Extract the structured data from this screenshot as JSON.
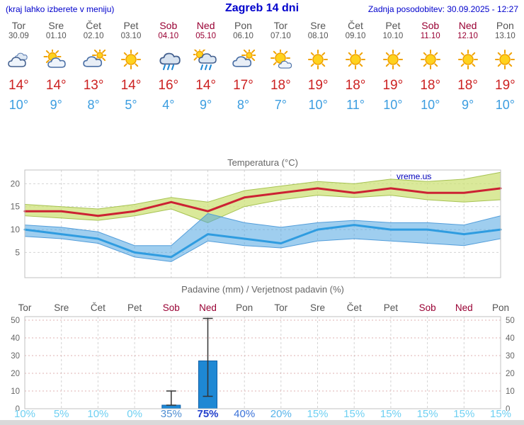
{
  "header": {
    "left_note": "(kraj lahko izberete v meniju)",
    "title": "Zagreb 14 dni",
    "updated": "Zadnja posodobitev: 30.09.2025 - 12:27"
  },
  "colors": {
    "header_blue": "#0000cc",
    "day_gray": "#555555",
    "weekend_red": "#990033",
    "tmax_red": "#cc2222",
    "tmin_blue": "#3b9de0",
    "bar_blue": "#1e88d4",
    "grid_gray": "#d4d4d4",
    "grid_pink": "#dfb0b0",
    "axis_text": "#666666",
    "watermark_blue": "#0000bb",
    "footer_gray": "#d9d9d9"
  },
  "forecast": {
    "days": [
      {
        "name": "Tor",
        "date": "30.09",
        "weekend": false,
        "icon": "cloudy",
        "tmax": "14°",
        "tmin": "10°",
        "prob": "10%",
        "prob_color": "#6fd0f2",
        "prob_bold": false
      },
      {
        "name": "Sre",
        "date": "01.10",
        "weekend": false,
        "icon": "partly-cloudy",
        "tmax": "14°",
        "tmin": "9°",
        "prob": "5%",
        "prob_color": "#6fd0f2",
        "prob_bold": false
      },
      {
        "name": "Čet",
        "date": "02.10",
        "weekend": false,
        "icon": "mostly-cloudy",
        "tmax": "13°",
        "tmin": "8°",
        "prob": "10%",
        "prob_color": "#6fd0f2",
        "prob_bold": false
      },
      {
        "name": "Pet",
        "date": "03.10",
        "weekend": false,
        "icon": "sunny",
        "tmax": "14°",
        "tmin": "5°",
        "prob": "0%",
        "prob_color": "#6fd0f2",
        "prob_bold": false
      },
      {
        "name": "Sob",
        "date": "04.10",
        "weekend": true,
        "icon": "rain",
        "tmax": "16°",
        "tmin": "4°",
        "prob": "35%",
        "prob_color": "#4f8ed2",
        "prob_bold": false
      },
      {
        "name": "Ned",
        "date": "05.10",
        "weekend": true,
        "icon": "rain-sun",
        "tmax": "14°",
        "tmin": "9°",
        "prob": "75%",
        "prob_color": "#2340cc",
        "prob_bold": true
      },
      {
        "name": "Pon",
        "date": "06.10",
        "weekend": false,
        "icon": "mostly-cloudy",
        "tmax": "17°",
        "tmin": "8°",
        "prob": "40%",
        "prob_color": "#3a72d8",
        "prob_bold": false
      },
      {
        "name": "Tor",
        "date": "07.10",
        "weekend": false,
        "icon": "mostly-sunny",
        "tmax": "18°",
        "tmin": "7°",
        "prob": "20%",
        "prob_color": "#58b4ea",
        "prob_bold": false
      },
      {
        "name": "Sre",
        "date": "08.10",
        "weekend": false,
        "icon": "sunny",
        "tmax": "19°",
        "tmin": "10°",
        "prob": "15%",
        "prob_color": "#6fd0f2",
        "prob_bold": false
      },
      {
        "name": "Čet",
        "date": "09.10",
        "weekend": false,
        "icon": "sunny",
        "tmax": "18°",
        "tmin": "11°",
        "prob": "15%",
        "prob_color": "#6fd0f2",
        "prob_bold": false
      },
      {
        "name": "Pet",
        "date": "10.10",
        "weekend": false,
        "icon": "sunny",
        "tmax": "19°",
        "tmin": "10°",
        "prob": "15%",
        "prob_color": "#6fd0f2",
        "prob_bold": false
      },
      {
        "name": "Sob",
        "date": "11.10",
        "weekend": true,
        "icon": "sunny",
        "tmax": "18°",
        "tmin": "10°",
        "prob": "15%",
        "prob_color": "#6fd0f2",
        "prob_bold": false
      },
      {
        "name": "Ned",
        "date": "12.10",
        "weekend": true,
        "icon": "sunny",
        "tmax": "18°",
        "tmin": "9°",
        "prob": "15%",
        "prob_color": "#6fd0f2",
        "prob_bold": false
      },
      {
        "name": "Pon",
        "date": "13.10",
        "weekend": false,
        "icon": "sunny",
        "tmax": "19°",
        "tmin": "10°",
        "prob": "15%",
        "prob_color": "#6fd0f2",
        "prob_bold": false
      }
    ]
  },
  "chart_data": [
    {
      "type": "line",
      "title": "Temperatura (°C)",
      "watermark": "vreme.us",
      "ylim": [
        -0.5,
        23
      ],
      "yticks": [
        5,
        10,
        15,
        20
      ],
      "x_count": 14,
      "series": [
        {
          "name": "max-temperature",
          "color": "#cc2233",
          "width": 3,
          "values": [
            14,
            14,
            13,
            14,
            16,
            14,
            17,
            18,
            19,
            18,
            19,
            18,
            18,
            19
          ]
        },
        {
          "name": "min-temperature",
          "color": "#2f9ce0",
          "width": 3,
          "values": [
            10,
            9,
            8,
            5,
            4,
            9,
            8,
            7,
            10,
            11,
            10,
            10,
            9,
            10
          ]
        }
      ],
      "bands": [
        {
          "name": "max-range",
          "fill": "rgba(205,225,120,0.75)",
          "edge": "rgba(160,190,70,0.9)",
          "upper": [
            15.5,
            15,
            14.5,
            15.5,
            17,
            16,
            18.5,
            19.5,
            20.5,
            20,
            21,
            20.5,
            21,
            22.5
          ],
          "lower": [
            13,
            12.5,
            12,
            13,
            14.5,
            11.5,
            15,
            16.5,
            17.5,
            17,
            17.5,
            16.5,
            16,
            16.5
          ]
        },
        {
          "name": "min-range",
          "fill": "rgba(80,165,225,0.55)",
          "edge": "rgba(70,150,215,0.9)",
          "upper": [
            11,
            10.5,
            9.5,
            6.5,
            6.5,
            13.5,
            11.5,
            10.5,
            11.5,
            12,
            11.5,
            11.5,
            11,
            13
          ],
          "lower": [
            8.5,
            8,
            7,
            4,
            3,
            7.5,
            6.5,
            6,
            7.5,
            8,
            7.5,
            7,
            6.5,
            8
          ]
        }
      ]
    },
    {
      "type": "bar",
      "title": "Padavine (mm) / Verjetnost padavin (%)",
      "ylim": [
        0,
        52
      ],
      "yticks": [
        0,
        10,
        20,
        30,
        40,
        50
      ],
      "x_labels": [
        "Tor",
        "Sre",
        "Čet",
        "Pet",
        "Sob",
        "Ned",
        "Pon",
        "Tor",
        "Sre",
        "Čet",
        "Pet",
        "Sob",
        "Ned",
        "Pon"
      ],
      "weekend": [
        false,
        false,
        false,
        false,
        true,
        true,
        false,
        false,
        false,
        false,
        false,
        true,
        true,
        false
      ],
      "values": [
        0,
        0,
        0,
        0,
        2,
        27,
        0,
        0,
        0,
        0,
        0,
        0,
        0,
        0
      ],
      "whiskers": [
        {
          "index": 4,
          "low": 2,
          "high": 10
        },
        {
          "index": 5,
          "low": 7,
          "high": 51
        }
      ],
      "probabilities": [
        "10%",
        "5%",
        "10%",
        "0%",
        "35%",
        "75%",
        "40%",
        "20%",
        "15%",
        "15%",
        "15%",
        "15%",
        "15%",
        "15%"
      ]
    }
  ]
}
